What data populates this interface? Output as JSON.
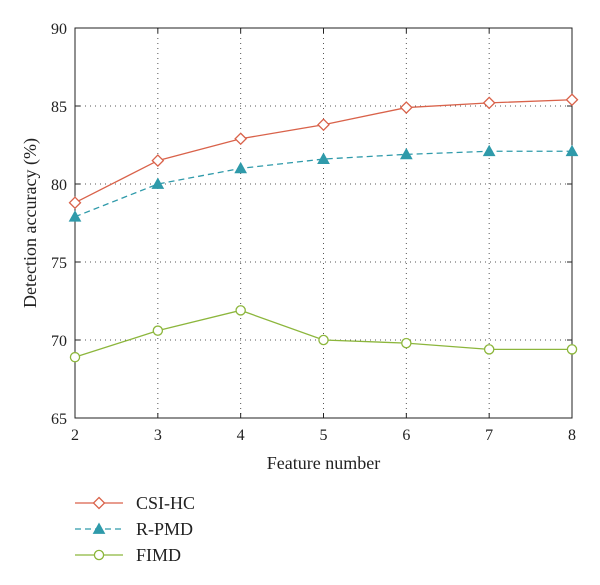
{
  "chart_data": {
    "type": "line",
    "title": "",
    "xlabel": "Feature number",
    "ylabel": "Detection accuracy (%)",
    "x": [
      2,
      3,
      4,
      5,
      6,
      7,
      8
    ],
    "xlim": [
      2,
      8
    ],
    "ylim": [
      65,
      90
    ],
    "xticks": [
      2,
      3,
      4,
      5,
      6,
      7,
      8
    ],
    "yticks": [
      65,
      70,
      75,
      80,
      85,
      90
    ],
    "grid": true,
    "legend_position": "bottom-left, below plot",
    "series": [
      {
        "name": "CSI-HC",
        "values": [
          78.8,
          81.5,
          82.9,
          83.8,
          84.9,
          85.2,
          85.4
        ],
        "color": "#d9624a",
        "line": "solid",
        "marker": "diamond-open"
      },
      {
        "name": "R-PMD",
        "values": [
          77.9,
          80.0,
          81.0,
          81.6,
          81.9,
          82.1,
          82.1
        ],
        "color": "#2f9aaa",
        "line": "dashed",
        "marker": "triangle-filled"
      },
      {
        "name": "FIMD",
        "values": [
          68.9,
          70.6,
          71.9,
          70.0,
          69.8,
          69.4,
          69.4
        ],
        "color": "#8cb63c",
        "line": "solid",
        "marker": "circle-open"
      }
    ]
  }
}
